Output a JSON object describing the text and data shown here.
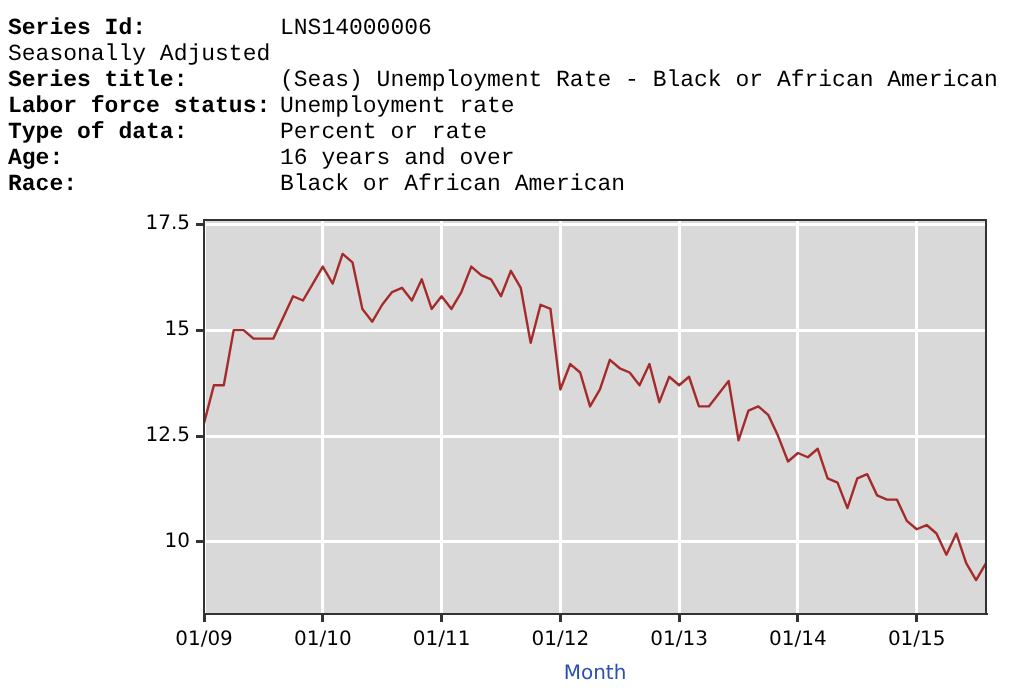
{
  "chart_data": {
    "type": "line",
    "xlabel": "Month",
    "annotations": [
      "Series Id: LNS14000006",
      "Seasonally Adjusted",
      "Series title: (Seas) Unemployment Rate - Black or African American",
      "Labor force status: Unemployment rate",
      "Type of data: Percent or rate",
      "Age: 16 years and over",
      "Race: Black or African American"
    ],
    "x": [
      "2009-01",
      "2009-02",
      "2009-03",
      "2009-04",
      "2009-05",
      "2009-06",
      "2009-07",
      "2009-08",
      "2009-09",
      "2009-10",
      "2009-11",
      "2009-12",
      "2010-01",
      "2010-02",
      "2010-03",
      "2010-04",
      "2010-05",
      "2010-06",
      "2010-07",
      "2010-08",
      "2010-09",
      "2010-10",
      "2010-11",
      "2010-12",
      "2011-01",
      "2011-02",
      "2011-03",
      "2011-04",
      "2011-05",
      "2011-06",
      "2011-07",
      "2011-08",
      "2011-09",
      "2011-10",
      "2011-11",
      "2011-12",
      "2012-01",
      "2012-02",
      "2012-03",
      "2012-04",
      "2012-05",
      "2012-06",
      "2012-07",
      "2012-08",
      "2012-09",
      "2012-10",
      "2012-11",
      "2012-12",
      "2013-01",
      "2013-02",
      "2013-03",
      "2013-04",
      "2013-05",
      "2013-06",
      "2013-07",
      "2013-08",
      "2013-09",
      "2013-10",
      "2013-11",
      "2013-12",
      "2014-01",
      "2014-02",
      "2014-03",
      "2014-04",
      "2014-05",
      "2014-06",
      "2014-07",
      "2014-08",
      "2014-09",
      "2014-10",
      "2014-11",
      "2014-12",
      "2015-01",
      "2015-02",
      "2015-03",
      "2015-04",
      "2015-05",
      "2015-06",
      "2015-07",
      "2015-08"
    ],
    "series": [
      {
        "color": "#a52a2a",
        "values": [
          12.8,
          13.7,
          13.7,
          15.0,
          15.0,
          14.8,
          14.8,
          14.8,
          15.3,
          15.8,
          15.7,
          16.1,
          16.5,
          16.1,
          16.8,
          16.6,
          15.5,
          15.2,
          15.6,
          15.9,
          16.0,
          15.7,
          16.2,
          15.5,
          15.8,
          15.5,
          15.9,
          16.5,
          16.3,
          16.2,
          15.8,
          16.4,
          16.0,
          14.7,
          15.6,
          15.5,
          13.6,
          14.2,
          14.0,
          13.2,
          13.6,
          14.3,
          14.1,
          14.0,
          13.7,
          14.2,
          13.3,
          13.9,
          13.7,
          13.9,
          13.2,
          13.2,
          13.5,
          13.8,
          12.4,
          13.1,
          13.2,
          13.0,
          12.5,
          11.9,
          12.1,
          12.0,
          12.2,
          11.5,
          11.4,
          10.8,
          11.5,
          11.6,
          11.1,
          11.0,
          11.0,
          10.5,
          10.3,
          10.4,
          10.2,
          9.7,
          10.2,
          9.5,
          9.1,
          9.5
        ]
      }
    ],
    "xlim": [
      "2009-01",
      "2015-08"
    ],
    "xticks": [
      {
        "value": "2009-01",
        "label": "01/09"
      },
      {
        "value": "2010-01",
        "label": "01/10"
      },
      {
        "value": "2011-01",
        "label": "01/11"
      },
      {
        "value": "2012-01",
        "label": "01/12"
      },
      {
        "value": "2013-01",
        "label": "01/13"
      },
      {
        "value": "2014-01",
        "label": "01/14"
      },
      {
        "value": "2015-01",
        "label": "01/15"
      }
    ],
    "ylim": [
      8.3,
      17.6
    ],
    "yticks": [
      10,
      12.5,
      15,
      17.5
    ],
    "grid": true,
    "marker": "none",
    "line_style": "solid",
    "legend": false
  }
}
